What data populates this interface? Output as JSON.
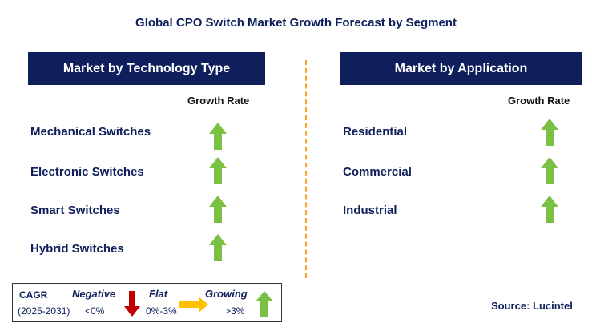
{
  "title": "Global CPO Switch Market Growth Forecast by Segment",
  "left_panel": {
    "heading": "Market by Technology Type",
    "column_label": "Growth Rate",
    "rows": [
      {
        "label": "Mechanical Switches",
        "trend": "growing"
      },
      {
        "label": "Electronic Switches",
        "trend": "growing"
      },
      {
        "label": "Smart Switches",
        "trend": "growing"
      },
      {
        "label": "Hybrid Switches",
        "trend": "growing"
      }
    ]
  },
  "right_panel": {
    "heading": "Market by Application",
    "column_label": "Growth Rate",
    "rows": [
      {
        "label": "Residential",
        "trend": "growing"
      },
      {
        "label": "Commercial",
        "trend": "growing"
      },
      {
        "label": "Industrial",
        "trend": "growing"
      }
    ]
  },
  "legend": {
    "cagr_label": "CAGR",
    "period": "(2025-2031)",
    "negative_label": "Negative",
    "negative_range": "<0%",
    "flat_label": "Flat",
    "flat_range": "0%-3%",
    "growing_label": "Growing",
    "growing_range": ">3%"
  },
  "source": "Source: Lucintel",
  "colors": {
    "header_bg": "#0f1f5c",
    "growing": "#7ac143",
    "negative": "#c00000",
    "flat": "#ffc000",
    "divider": "#f5a623"
  }
}
